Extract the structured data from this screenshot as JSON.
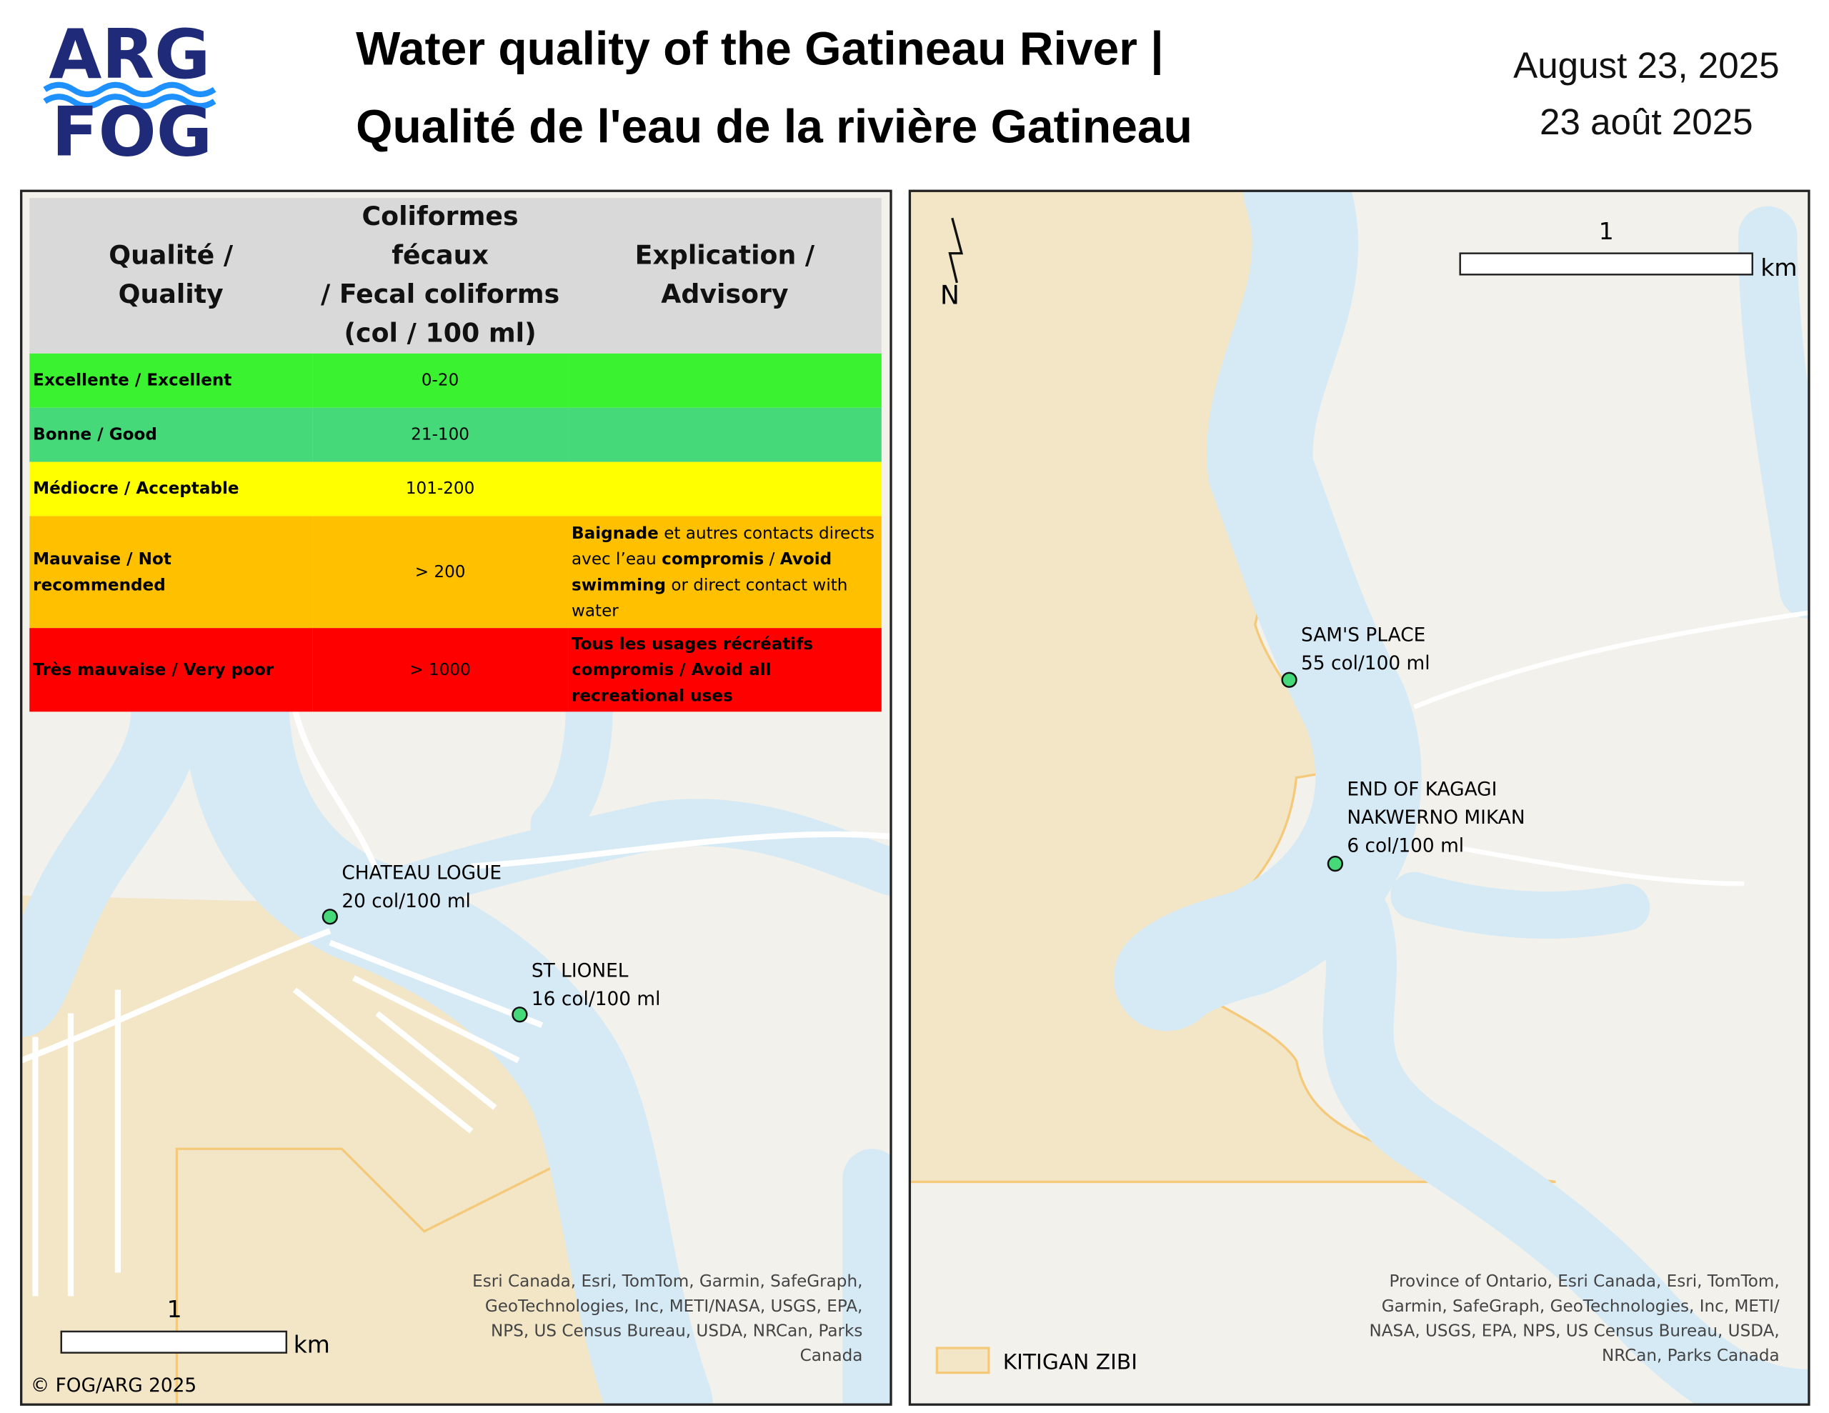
{
  "logo": {
    "line1": "ARG",
    "line2": "FOG"
  },
  "header": {
    "title_line1": "Water quality of the Gatineau River |",
    "title_line2": "Qualité de l'eau de la rivière Gatineau",
    "date_en": "August 23, 2025",
    "date_fr": "23 août 2025"
  },
  "table": {
    "headers": [
      [
        "Qualité /",
        "Quality"
      ],
      [
        "Coliformes fécaux",
        "/ Fecal coliforms",
        "(col / 100 ml)"
      ],
      [
        "Explication /",
        "Advisory"
      ]
    ],
    "rows": [
      {
        "quality": "Excellente / Excellent",
        "range": "0-20",
        "color": "#3af22f"
      },
      {
        "quality": "Bonne / Good",
        "range": "21-100",
        "color": "#45d97a"
      },
      {
        "quality": "Médiocre / Acceptable",
        "range": "101-200",
        "color": "#ffff00"
      },
      {
        "quality": "Mauvaise / Not recommended",
        "range": "> 200",
        "color": "#ffc000",
        "advisory": [
          {
            "text": "Baignade",
            "bold": true
          },
          {
            "text": " et autres contacts directs avec l’eau ",
            "bold": false
          },
          {
            "text": "compromis",
            "bold": true
          },
          {
            "text": " / ",
            "bold": false
          },
          {
            "text": "Avoid swimming",
            "bold": true
          },
          {
            "text": " or direct contact with water",
            "bold": false
          }
        ]
      },
      {
        "quality": "Très mauvaise / Very poor",
        "range": "> 1000",
        "color": "#ff0000",
        "advisory": [
          {
            "text": "Tous les usages récréatifs compromis / Avoid all recreational uses",
            "bold": true
          }
        ]
      }
    ]
  },
  "left_map": {
    "sites": [
      {
        "name": [
          "CHATEAU LOGUE"
        ],
        "result": "20 col/100 ml"
      },
      {
        "name": [
          "ST LIONEL"
        ],
        "result": "16 col/100 ml"
      }
    ],
    "scale": {
      "value": "1",
      "unit": "km"
    },
    "attribution": [
      "Esri Canada, Esri, TomTom, Garmin, SafeGraph,",
      "GeoTechnologies, Inc, METI/NASA, USGS, EPA,",
      "NPS, US Census Bureau, USDA, NRCan, Parks",
      "Canada"
    ],
    "copyright": "© FOG/ARG 2025"
  },
  "right_map": {
    "sites": [
      {
        "name": [
          "SAM'S PLACE"
        ],
        "result": "55 col/100 ml"
      },
      {
        "name": [
          "END OF KAGAGI",
          "NAKWERNO MIKAN"
        ],
        "result": "6 col/100 ml"
      }
    ],
    "scale": {
      "value": "1",
      "unit": "km"
    },
    "north": "N",
    "attribution": [
      "Province of Ontario, Esri Canada, Esri, TomTom,",
      "Garmin, SafeGraph, GeoTechnologies, Inc, METI/",
      "NASA, USGS, EPA, NPS, US Census Bureau, USDA,",
      "NRCan, Parks Canada"
    ],
    "legend": "KITIGAN ZIBI"
  }
}
